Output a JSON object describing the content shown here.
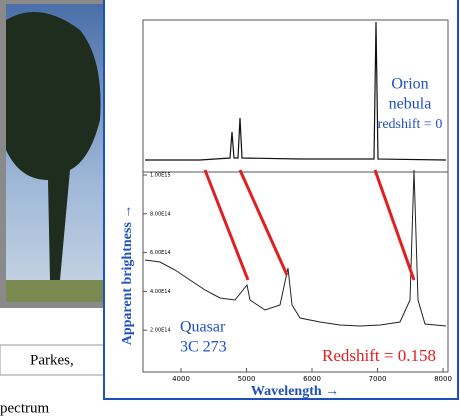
{
  "photo": {
    "caption": "Parkes,"
  },
  "slide_text": "pectrum",
  "figure": {
    "top_panel": {
      "label_line1": "Orion",
      "label_line2": "nebula",
      "label_line3": "redshift = 0"
    },
    "bottom_panel": {
      "label_line1": "Quasar",
      "label_line2": "3C 273",
      "redshift_label": "Redshift = 0.158",
      "yticks": [
        "1.00E15",
        "8.00E14",
        "6.00E14",
        "4.00E14",
        "2.00E14"
      ]
    },
    "xticks": [
      "4000",
      "5000",
      "6000",
      "7000",
      "8000"
    ],
    "ylabel": "Apparent brightness →",
    "xlabel": "Wavelength →"
  }
}
